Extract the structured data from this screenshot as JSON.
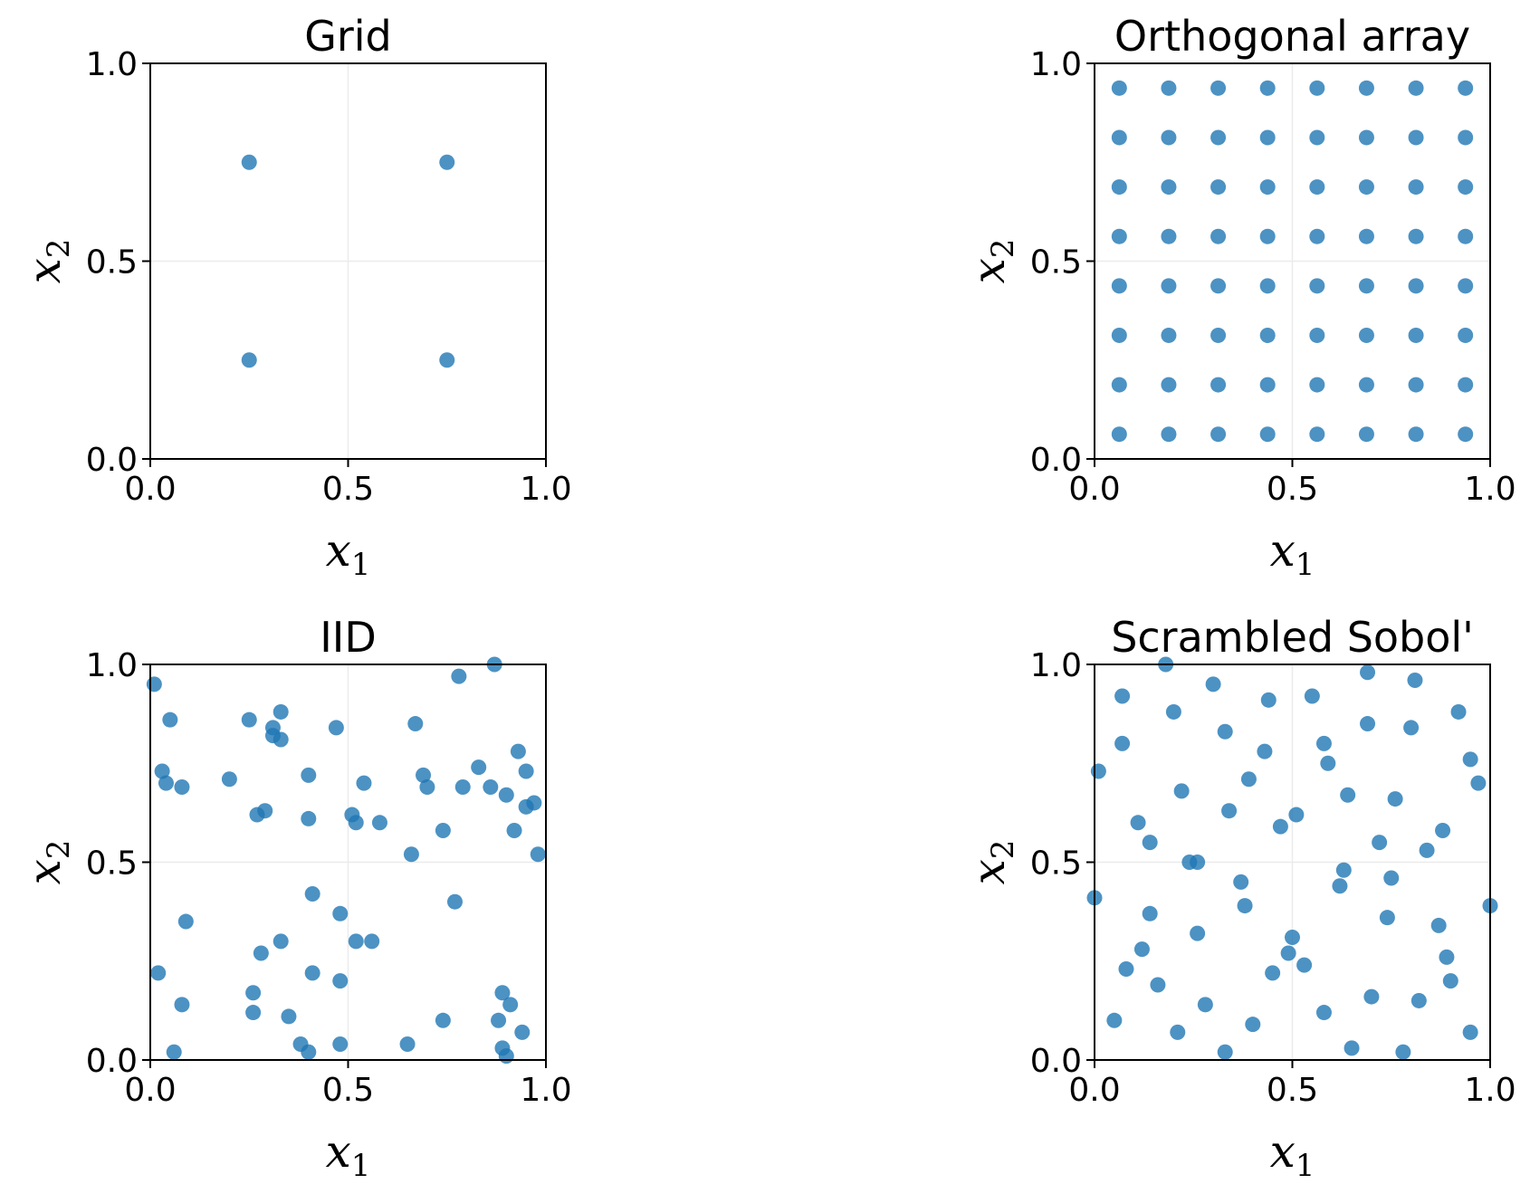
{
  "figure": {
    "point_color": "#1f77b4",
    "point_alpha": 0.8,
    "grid_color": "#ebebeb"
  },
  "chart_data": [
    {
      "type": "scatter",
      "title": "Grid",
      "xlabel_symbol": "x",
      "xlabel_sub": "1",
      "ylabel_symbol": "x",
      "ylabel_sub": "2",
      "xlim": [
        0,
        1
      ],
      "ylim": [
        0,
        1
      ],
      "xticks": [
        "0.0",
        "0.5",
        "1.0"
      ],
      "yticks": [
        "0.0",
        "0.5",
        "1.0"
      ],
      "grid": true,
      "points": [
        [
          0.25,
          0.25
        ],
        [
          0.25,
          0.75
        ],
        [
          0.75,
          0.25
        ],
        [
          0.75,
          0.75
        ]
      ]
    },
    {
      "type": "scatter",
      "title": "Orthogonal array",
      "xlabel_symbol": "x",
      "xlabel_sub": "1",
      "ylabel_symbol": "x",
      "ylabel_sub": "2",
      "xlim": [
        0,
        1
      ],
      "ylim": [
        0,
        1
      ],
      "xticks": [
        "0.0",
        "0.5",
        "1.0"
      ],
      "yticks": [
        "0.0",
        "0.5",
        "1.0"
      ],
      "grid": true,
      "points": [
        [
          0.0625,
          0.0625
        ],
        [
          0.1875,
          0.0625
        ],
        [
          0.3125,
          0.0625
        ],
        [
          0.4375,
          0.0625
        ],
        [
          0.5625,
          0.0625
        ],
        [
          0.6875,
          0.0625
        ],
        [
          0.8125,
          0.0625
        ],
        [
          0.9375,
          0.0625
        ],
        [
          0.0625,
          0.1875
        ],
        [
          0.1875,
          0.1875
        ],
        [
          0.3125,
          0.1875
        ],
        [
          0.4375,
          0.1875
        ],
        [
          0.5625,
          0.1875
        ],
        [
          0.6875,
          0.1875
        ],
        [
          0.8125,
          0.1875
        ],
        [
          0.9375,
          0.1875
        ],
        [
          0.0625,
          0.3125
        ],
        [
          0.1875,
          0.3125
        ],
        [
          0.3125,
          0.3125
        ],
        [
          0.4375,
          0.3125
        ],
        [
          0.5625,
          0.3125
        ],
        [
          0.6875,
          0.3125
        ],
        [
          0.8125,
          0.3125
        ],
        [
          0.9375,
          0.3125
        ],
        [
          0.0625,
          0.4375
        ],
        [
          0.1875,
          0.4375
        ],
        [
          0.3125,
          0.4375
        ],
        [
          0.4375,
          0.4375
        ],
        [
          0.5625,
          0.4375
        ],
        [
          0.6875,
          0.4375
        ],
        [
          0.8125,
          0.4375
        ],
        [
          0.9375,
          0.4375
        ],
        [
          0.0625,
          0.5625
        ],
        [
          0.1875,
          0.5625
        ],
        [
          0.3125,
          0.5625
        ],
        [
          0.4375,
          0.5625
        ],
        [
          0.5625,
          0.5625
        ],
        [
          0.6875,
          0.5625
        ],
        [
          0.8125,
          0.5625
        ],
        [
          0.9375,
          0.5625
        ],
        [
          0.0625,
          0.6875
        ],
        [
          0.1875,
          0.6875
        ],
        [
          0.3125,
          0.6875
        ],
        [
          0.4375,
          0.6875
        ],
        [
          0.5625,
          0.6875
        ],
        [
          0.6875,
          0.6875
        ],
        [
          0.8125,
          0.6875
        ],
        [
          0.9375,
          0.6875
        ],
        [
          0.0625,
          0.8125
        ],
        [
          0.1875,
          0.8125
        ],
        [
          0.3125,
          0.8125
        ],
        [
          0.4375,
          0.8125
        ],
        [
          0.5625,
          0.8125
        ],
        [
          0.6875,
          0.8125
        ],
        [
          0.8125,
          0.8125
        ],
        [
          0.9375,
          0.8125
        ],
        [
          0.0625,
          0.9375
        ],
        [
          0.1875,
          0.9375
        ],
        [
          0.3125,
          0.9375
        ],
        [
          0.4375,
          0.9375
        ],
        [
          0.5625,
          0.9375
        ],
        [
          0.6875,
          0.9375
        ],
        [
          0.8125,
          0.9375
        ],
        [
          0.9375,
          0.9375
        ]
      ]
    },
    {
      "type": "scatter",
      "title": "IID",
      "xlabel_symbol": "x",
      "xlabel_sub": "1",
      "ylabel_symbol": "x",
      "ylabel_sub": "2",
      "xlim": [
        0,
        1
      ],
      "ylim": [
        0,
        1
      ],
      "xticks": [
        "0.0",
        "0.5",
        "1.0"
      ],
      "yticks": [
        "0.0",
        "0.5",
        "1.0"
      ],
      "grid": true,
      "points": [
        [
          0.01,
          0.95
        ],
        [
          0.05,
          0.86
        ],
        [
          0.03,
          0.73
        ],
        [
          0.04,
          0.7
        ],
        [
          0.08,
          0.69
        ],
        [
          0.2,
          0.71
        ],
        [
          0.25,
          0.86
        ],
        [
          0.33,
          0.88
        ],
        [
          0.31,
          0.84
        ],
        [
          0.31,
          0.82
        ],
        [
          0.33,
          0.81
        ],
        [
          0.47,
          0.84
        ],
        [
          0.4,
          0.72
        ],
        [
          0.27,
          0.62
        ],
        [
          0.29,
          0.63
        ],
        [
          0.4,
          0.61
        ],
        [
          0.51,
          0.62
        ],
        [
          0.52,
          0.6
        ],
        [
          0.54,
          0.7
        ],
        [
          0.58,
          0.6
        ],
        [
          0.67,
          0.85
        ],
        [
          0.69,
          0.72
        ],
        [
          0.7,
          0.69
        ],
        [
          0.66,
          0.52
        ],
        [
          0.74,
          0.58
        ],
        [
          0.78,
          0.97
        ],
        [
          0.87,
          1.0
        ],
        [
          0.79,
          0.69
        ],
        [
          0.83,
          0.74
        ],
        [
          0.86,
          0.69
        ],
        [
          0.9,
          0.67
        ],
        [
          0.93,
          0.78
        ],
        [
          0.95,
          0.73
        ],
        [
          0.95,
          0.64
        ],
        [
          0.97,
          0.65
        ],
        [
          0.92,
          0.58
        ],
        [
          0.98,
          0.52
        ],
        [
          0.09,
          0.35
        ],
        [
          0.02,
          0.22
        ],
        [
          0.08,
          0.14
        ],
        [
          0.06,
          0.02
        ],
        [
          0.28,
          0.27
        ],
        [
          0.33,
          0.3
        ],
        [
          0.41,
          0.42
        ],
        [
          0.41,
          0.22
        ],
        [
          0.26,
          0.17
        ],
        [
          0.26,
          0.12
        ],
        [
          0.35,
          0.11
        ],
        [
          0.38,
          0.04
        ],
        [
          0.4,
          0.02
        ],
        [
          0.48,
          0.37
        ],
        [
          0.48,
          0.2
        ],
        [
          0.52,
          0.3
        ],
        [
          0.56,
          0.3
        ],
        [
          0.48,
          0.04
        ],
        [
          0.65,
          0.04
        ],
        [
          0.77,
          0.4
        ],
        [
          0.74,
          0.1
        ],
        [
          0.89,
          0.17
        ],
        [
          0.91,
          0.14
        ],
        [
          0.88,
          0.1
        ],
        [
          0.94,
          0.07
        ],
        [
          0.89,
          0.03
        ],
        [
          0.9,
          0.01
        ]
      ]
    },
    {
      "type": "scatter",
      "title": "Scrambled Sobol'",
      "xlabel_symbol": "x",
      "xlabel_sub": "1",
      "ylabel_symbol": "x",
      "ylabel_sub": "2",
      "xlim": [
        0,
        1
      ],
      "ylim": [
        0,
        1
      ],
      "xticks": [
        "0.0",
        "0.5",
        "1.0"
      ],
      "yticks": [
        "0.0",
        "0.5",
        "1.0"
      ],
      "grid": true,
      "points": [
        [
          0.18,
          1.0
        ],
        [
          0.07,
          0.92
        ],
        [
          0.3,
          0.95
        ],
        [
          0.44,
          0.91
        ],
        [
          0.55,
          0.92
        ],
        [
          0.69,
          0.98
        ],
        [
          0.81,
          0.96
        ],
        [
          0.2,
          0.88
        ],
        [
          0.33,
          0.83
        ],
        [
          0.43,
          0.78
        ],
        [
          0.07,
          0.8
        ],
        [
          0.69,
          0.85
        ],
        [
          0.8,
          0.84
        ],
        [
          0.92,
          0.88
        ],
        [
          0.58,
          0.8
        ],
        [
          0.59,
          0.75
        ],
        [
          0.95,
          0.76
        ],
        [
          0.01,
          0.73
        ],
        [
          0.22,
          0.68
        ],
        [
          0.39,
          0.71
        ],
        [
          0.97,
          0.7
        ],
        [
          0.64,
          0.67
        ],
        [
          0.34,
          0.63
        ],
        [
          0.51,
          0.62
        ],
        [
          0.76,
          0.66
        ],
        [
          0.11,
          0.6
        ],
        [
          0.47,
          0.59
        ],
        [
          0.88,
          0.58
        ],
        [
          0.14,
          0.55
        ],
        [
          0.72,
          0.55
        ],
        [
          0.84,
          0.53
        ],
        [
          0.24,
          0.5
        ],
        [
          0.26,
          0.5
        ],
        [
          0.37,
          0.45
        ],
        [
          0.63,
          0.48
        ],
        [
          0.62,
          0.44
        ],
        [
          0.75,
          0.46
        ],
        [
          0.0,
          0.41
        ],
        [
          0.38,
          0.39
        ],
        [
          0.14,
          0.37
        ],
        [
          0.74,
          0.36
        ],
        [
          0.87,
          0.34
        ],
        [
          1.0,
          0.39
        ],
        [
          0.26,
          0.32
        ],
        [
          0.5,
          0.31
        ],
        [
          0.12,
          0.28
        ],
        [
          0.49,
          0.27
        ],
        [
          0.53,
          0.24
        ],
        [
          0.89,
          0.26
        ],
        [
          0.08,
          0.23
        ],
        [
          0.45,
          0.22
        ],
        [
          0.16,
          0.19
        ],
        [
          0.9,
          0.2
        ],
        [
          0.7,
          0.16
        ],
        [
          0.82,
          0.15
        ],
        [
          0.28,
          0.14
        ],
        [
          0.58,
          0.12
        ],
        [
          0.05,
          0.1
        ],
        [
          0.4,
          0.09
        ],
        [
          0.21,
          0.07
        ],
        [
          0.95,
          0.07
        ],
        [
          0.65,
          0.03
        ],
        [
          0.33,
          0.02
        ],
        [
          0.78,
          0.02
        ]
      ]
    }
  ]
}
